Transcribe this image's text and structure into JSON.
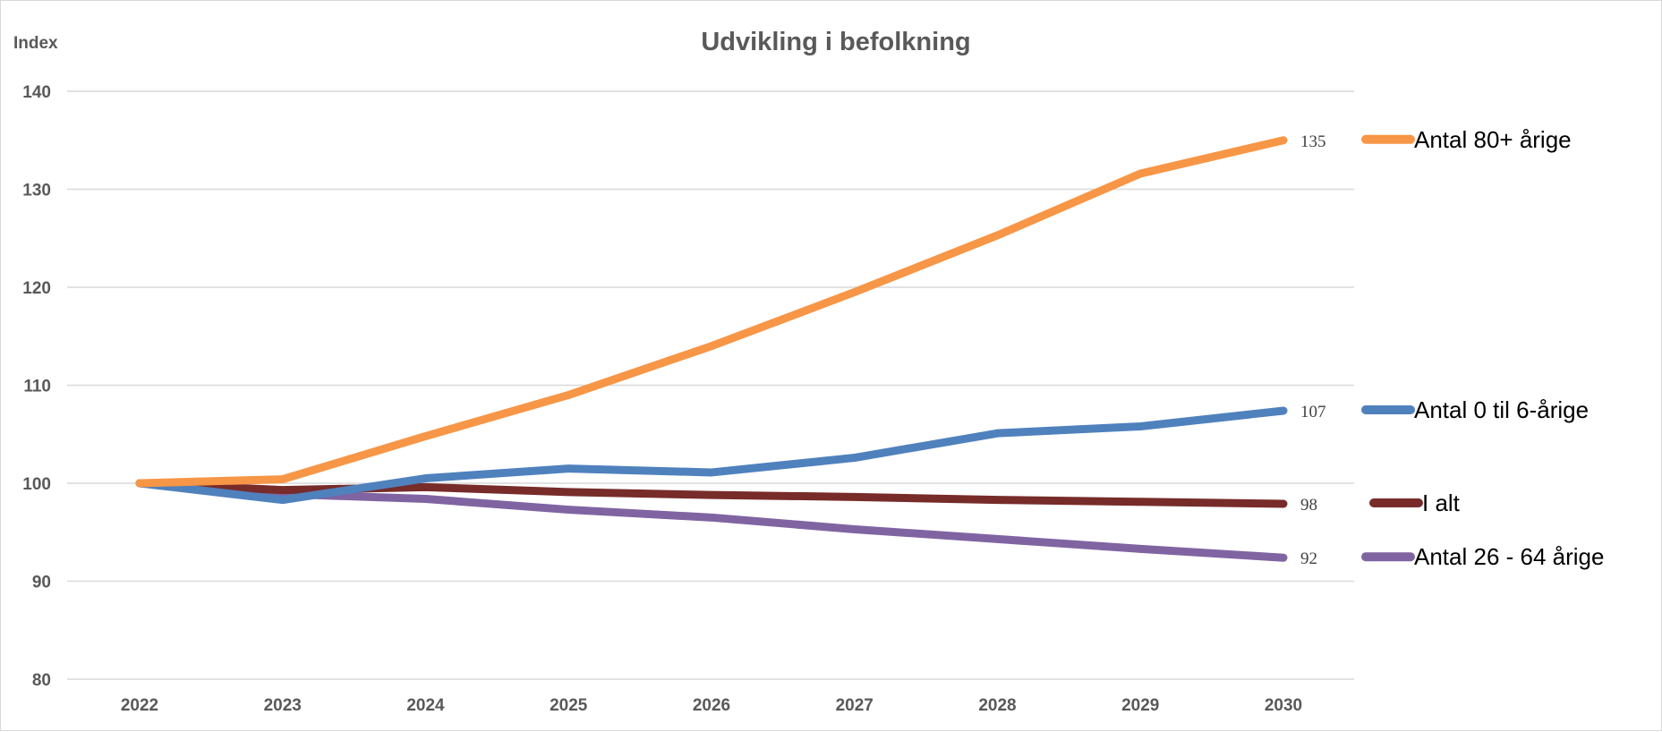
{
  "chart_data": {
    "type": "line",
    "title": "Udvikling i befolkning",
    "ylabel": "Index",
    "xlabel": "",
    "ylim": [
      80,
      140
    ],
    "yticks": [
      80,
      90,
      100,
      110,
      120,
      130,
      140
    ],
    "grid": true,
    "legend_placement": "right",
    "categories": [
      "2022",
      "2023",
      "2024",
      "2025",
      "2026",
      "2027",
      "2028",
      "2029",
      "2030"
    ],
    "series": [
      {
        "name": "Antal 80+ årige",
        "color": "#F79646",
        "end_label": "135",
        "values": [
          100,
          100.4,
          104.8,
          109.0,
          114.0,
          119.5,
          125.3,
          131.6,
          135.0
        ]
      },
      {
        "name": "Antal 0 til 6-årige",
        "color": "#4F81BD",
        "end_label": "107",
        "values": [
          100,
          98.3,
          100.5,
          101.5,
          101.1,
          102.6,
          105.1,
          105.8,
          107.4
        ]
      },
      {
        "name": "I alt",
        "color": "#772C2A",
        "end_label": "98",
        "values": [
          100,
          99.3,
          99.6,
          99.1,
          98.8,
          98.6,
          98.3,
          98.1,
          97.9
        ]
      },
      {
        "name": "Antal 26 - 64 årige",
        "color": "#8064A2",
        "end_label": "92",
        "values": [
          100,
          98.9,
          98.4,
          97.3,
          96.5,
          95.3,
          94.3,
          93.3,
          92.4
        ]
      }
    ]
  }
}
